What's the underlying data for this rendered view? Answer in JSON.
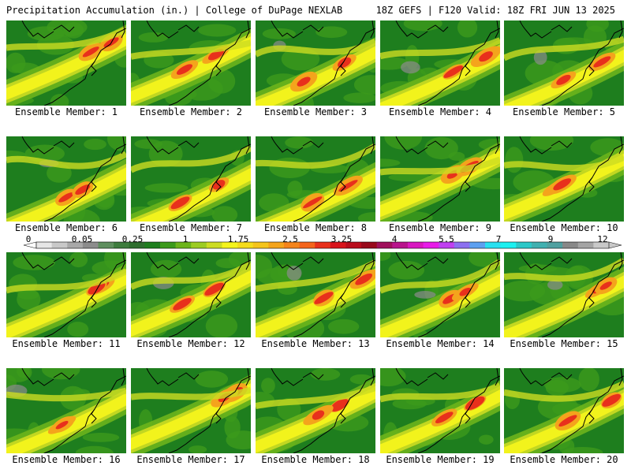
{
  "header": {
    "left": "Precipitation Accumulation (in.) | College of DuPage NEXLAB",
    "right": "18Z GEFS | F120 Valid: 18Z FRI JUN 13 2025"
  },
  "panels": [
    {
      "label": "Ensemble Member: 1"
    },
    {
      "label": "Ensemble Member: 2"
    },
    {
      "label": "Ensemble Member: 3"
    },
    {
      "label": "Ensemble Member: 4"
    },
    {
      "label": "Ensemble Member: 5"
    },
    {
      "label": "Ensemble Member: 6"
    },
    {
      "label": "Ensemble Member: 7"
    },
    {
      "label": "Ensemble Member: 8"
    },
    {
      "label": "Ensemble Member: 9"
    },
    {
      "label": "Ensemble Member: 10"
    },
    {
      "label": "Ensemble Member: 11"
    },
    {
      "label": "Ensemble Member: 12"
    },
    {
      "label": "Ensemble Member: 13"
    },
    {
      "label": "Ensemble Member: 14"
    },
    {
      "label": "Ensemble Member: 15"
    },
    {
      "label": "Ensemble Member: 16"
    },
    {
      "label": "Ensemble Member: 17"
    },
    {
      "label": "Ensemble Member: 18"
    },
    {
      "label": "Ensemble Member: 19"
    },
    {
      "label": "Ensemble Member: 20"
    }
  ],
  "colorbar": {
    "labels": [
      "0",
      "0.05",
      "0.25",
      "1",
      "1.75",
      "2.5",
      "3.25",
      "4",
      "5.5",
      "7",
      "9",
      "12"
    ],
    "colors": [
      "#e6e6e6",
      "#c8c8c8",
      "#a8a8a8",
      "#8c8c8c",
      "#5e8e5e",
      "#3e7c3e",
      "#2e6e2e",
      "#1e7e1e",
      "#3c9a1c",
      "#6cb41c",
      "#9ccc22",
      "#ccdc22",
      "#f4f41c",
      "#f4dc1c",
      "#f4c41c",
      "#f4a41c",
      "#f4841c",
      "#f4641c",
      "#e8301c",
      "#d8141c",
      "#b80c1c",
      "#980a1c",
      "#a0105c",
      "#b8148c",
      "#d818c0",
      "#e81ce8",
      "#c040f0",
      "#8c70f0",
      "#5ca0f0",
      "#28e0f0",
      "#1cf0f0",
      "#2cc8c8",
      "#40b0b0",
      "#50a0a0",
      "#888888",
      "#a4a4a4",
      "#c8c8c8"
    ]
  },
  "map_colors": {
    "dark_green": "#1e7e1e",
    "mid_green": "#3c9a1c",
    "light_green": "#6cb41c",
    "yellow_green": "#ccdc22",
    "yellow": "#f4f41c",
    "orange": "#f4a41c",
    "red": "#e8301c",
    "dark_red": "#b80c1c",
    "gray": "#8c8c8c",
    "coastline": "#000000"
  }
}
